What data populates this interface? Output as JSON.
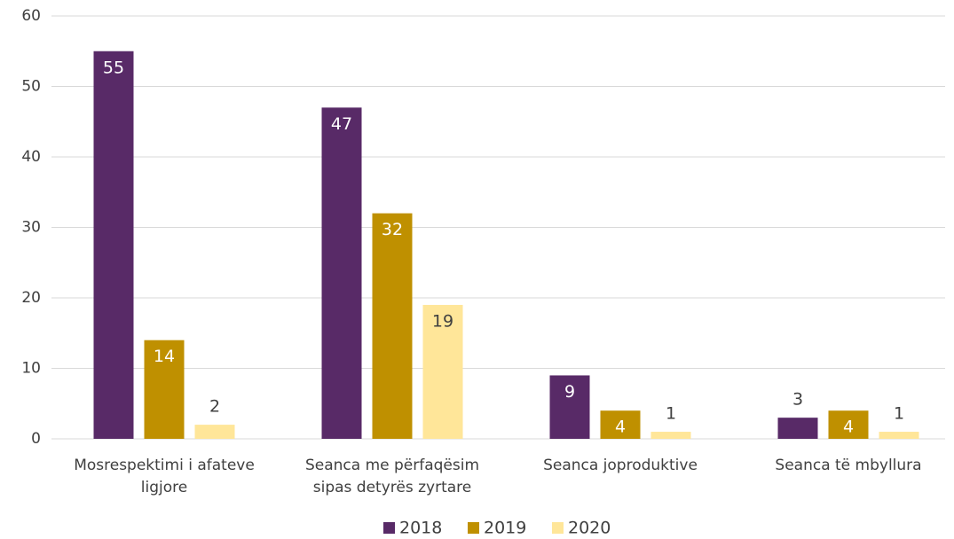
{
  "chart_data": {
    "type": "bar",
    "categories": [
      "Mosrespektimi i afateve ligjore",
      "Seanca me përfaqësim sipas detyrës zyrtare",
      "Seanca joproduktive",
      "Seanca të mbyllura"
    ],
    "series": [
      {
        "name": "2018",
        "color": "#582a67",
        "values": [
          55,
          47,
          9,
          3
        ]
      },
      {
        "name": "2019",
        "color": "#bf9000",
        "values": [
          14,
          32,
          4,
          4
        ]
      },
      {
        "name": "2020",
        "color": "#ffe699",
        "values": [
          2,
          19,
          1,
          1
        ]
      }
    ],
    "ylim": [
      0,
      60
    ],
    "yticks": [
      0,
      10,
      20,
      30,
      40,
      50,
      60
    ],
    "grid": true,
    "legend": "bottom"
  }
}
